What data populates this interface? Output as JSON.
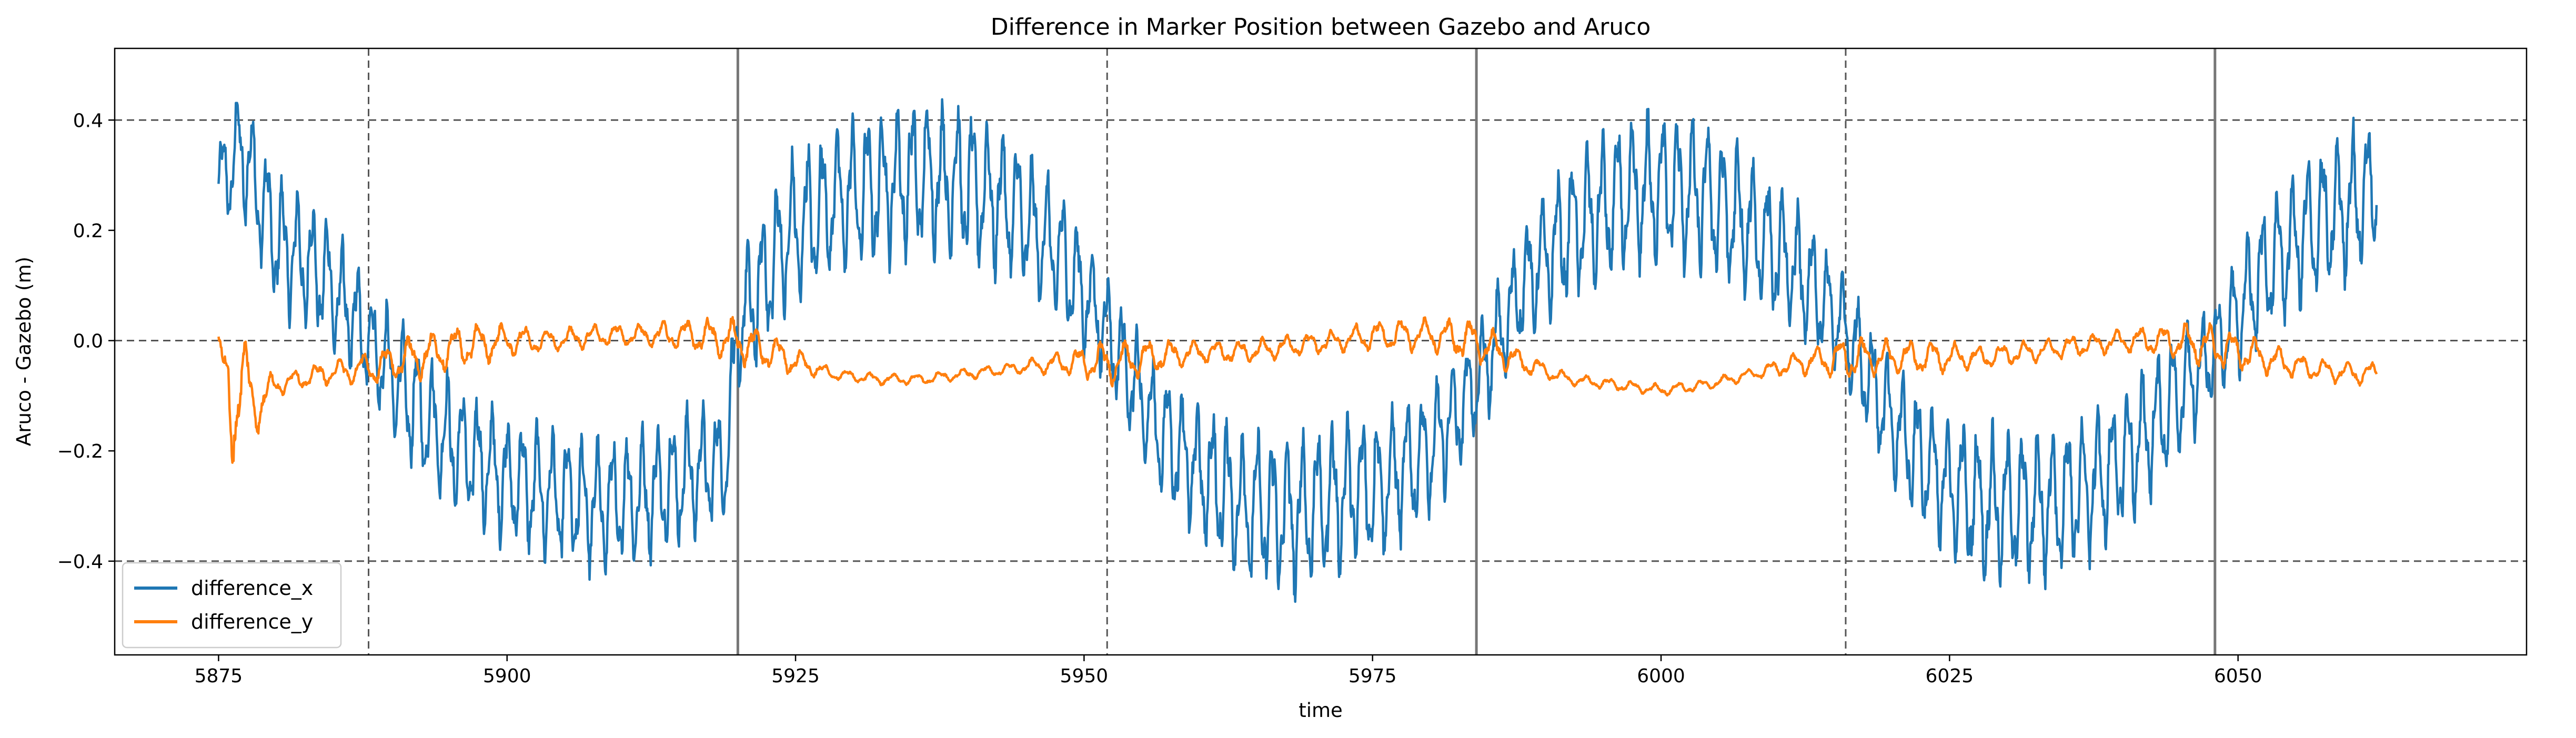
{
  "chart_data": {
    "type": "line",
    "title": "Difference in Marker Position between Gazebo and Aruco",
    "xlabel": "time",
    "ylabel": "Aruco - Gazebo (m)",
    "xlim": [
      5866,
      6075
    ],
    "ylim": [
      -0.57,
      0.53
    ],
    "xticks": [
      5875,
      5900,
      5925,
      5950,
      5975,
      6000,
      6025,
      6050
    ],
    "yticks": [
      -0.4,
      -0.2,
      0.0,
      0.2,
      0.4
    ],
    "ytick_labels": [
      "−0.4",
      "−0.2",
      "0.0",
      "0.2",
      "0.4"
    ],
    "hlines": [
      {
        "y": 0.4,
        "style": "dashed"
      },
      {
        "y": 0.0,
        "style": "dashed"
      },
      {
        "y": -0.4,
        "style": "dashed"
      }
    ],
    "vlines": [
      {
        "x": 5888,
        "style": "dashed"
      },
      {
        "x": 5920,
        "style": "solid"
      },
      {
        "x": 5952,
        "style": "dashed"
      },
      {
        "x": 5984,
        "style": "solid"
      },
      {
        "x": 6016,
        "style": "dashed"
      },
      {
        "x": 6048,
        "style": "solid"
      }
    ],
    "grid": false,
    "legend_position": "lower left",
    "colors": {
      "difference_x": "#1f77b4",
      "difference_y": "#ff7f0e",
      "reference_lines": "#555555"
    },
    "series": [
      {
        "name": "difference_x",
        "x": [
          5875,
          5877,
          5880,
          5884,
          5888,
          5892,
          5896,
          5900,
          5904,
          5908,
          5912,
          5916,
          5919,
          5920,
          5924,
          5928,
          5932,
          5936,
          5940,
          5944,
          5948,
          5952,
          5956,
          5960,
          5964,
          5968,
          5972,
          5976,
          5980,
          5984,
          5988,
          5992,
          5996,
          6000,
          6004,
          6008,
          6012,
          6016,
          6020,
          6024,
          6028,
          6032,
          6036,
          6040,
          6044,
          6048,
          6052,
          6056,
          6060,
          6062
        ],
        "y": [
          0.28,
          0.35,
          0.18,
          0.12,
          0.0,
          -0.12,
          -0.2,
          -0.25,
          -0.28,
          -0.3,
          -0.28,
          -0.24,
          -0.22,
          0.02,
          0.18,
          0.25,
          0.28,
          0.3,
          0.28,
          0.24,
          0.15,
          0.02,
          -0.15,
          -0.24,
          -0.3,
          -0.32,
          -0.28,
          -0.26,
          -0.2,
          -0.08,
          0.1,
          0.2,
          0.25,
          0.28,
          0.26,
          0.2,
          0.12,
          0.02,
          -0.15,
          -0.25,
          -0.3,
          -0.3,
          -0.28,
          -0.22,
          -0.12,
          -0.02,
          0.12,
          0.2,
          0.25,
          0.28
        ],
        "oscillation_amplitude": [
          0.08,
          0.12,
          0.12,
          0.12,
          0.1,
          0.12,
          0.12,
          0.12,
          0.12,
          0.12,
          0.12,
          0.12,
          0.1,
          0.12,
          0.14,
          0.14,
          0.14,
          0.14,
          0.14,
          0.13,
          0.12,
          0.1,
          0.11,
          0.13,
          0.14,
          0.15,
          0.14,
          0.13,
          0.12,
          0.1,
          0.11,
          0.13,
          0.14,
          0.14,
          0.14,
          0.13,
          0.12,
          0.1,
          0.11,
          0.13,
          0.14,
          0.14,
          0.14,
          0.13,
          0.12,
          0.1,
          0.12,
          0.13,
          0.14,
          0.12
        ],
        "oscillation_period": 1.3
      },
      {
        "name": "difference_y",
        "x": [
          5875,
          5876,
          5877,
          5878,
          5880,
          5884,
          5888,
          5892,
          5896,
          5900,
          5904,
          5908,
          5912,
          5916,
          5920,
          5924,
          5928,
          5932,
          5936,
          5940,
          5944,
          5948,
          5952,
          5956,
          5960,
          5964,
          5968,
          5972,
          5976,
          5980,
          5984,
          5988,
          5992,
          5996,
          6000,
          6004,
          6008,
          6012,
          6016,
          6020,
          6024,
          6028,
          6032,
          6036,
          6040,
          6044,
          6048,
          6052,
          6056,
          6060,
          6062
        ],
        "y": [
          0.0,
          -0.15,
          -0.05,
          -0.12,
          -0.08,
          -0.06,
          -0.05,
          -0.03,
          -0.01,
          0.0,
          0.0,
          0.01,
          0.01,
          0.01,
          0.0,
          -0.03,
          -0.06,
          -0.07,
          -0.07,
          -0.06,
          -0.05,
          -0.04,
          -0.04,
          -0.03,
          -0.02,
          -0.02,
          -0.01,
          0.0,
          0.01,
          0.01,
          0.0,
          -0.04,
          -0.07,
          -0.08,
          -0.09,
          -0.08,
          -0.06,
          -0.04,
          -0.03,
          -0.03,
          -0.03,
          -0.03,
          -0.02,
          -0.01,
          0.0,
          0.0,
          -0.01,
          -0.03,
          -0.05,
          -0.06,
          -0.06
        ],
        "oscillation_amplitude": [
          0.02,
          0.12,
          0.08,
          0.06,
          0.02,
          0.02,
          0.03,
          0.04,
          0.04,
          0.03,
          0.02,
          0.02,
          0.02,
          0.03,
          0.04,
          0.03,
          0.01,
          0.01,
          0.01,
          0.01,
          0.01,
          0.02,
          0.04,
          0.03,
          0.02,
          0.02,
          0.02,
          0.02,
          0.03,
          0.03,
          0.04,
          0.02,
          0.01,
          0.01,
          0.01,
          0.01,
          0.01,
          0.02,
          0.04,
          0.03,
          0.03,
          0.02,
          0.02,
          0.02,
          0.02,
          0.03,
          0.04,
          0.03,
          0.02,
          0.02,
          0.02
        ],
        "oscillation_period": 2.0
      }
    ]
  }
}
